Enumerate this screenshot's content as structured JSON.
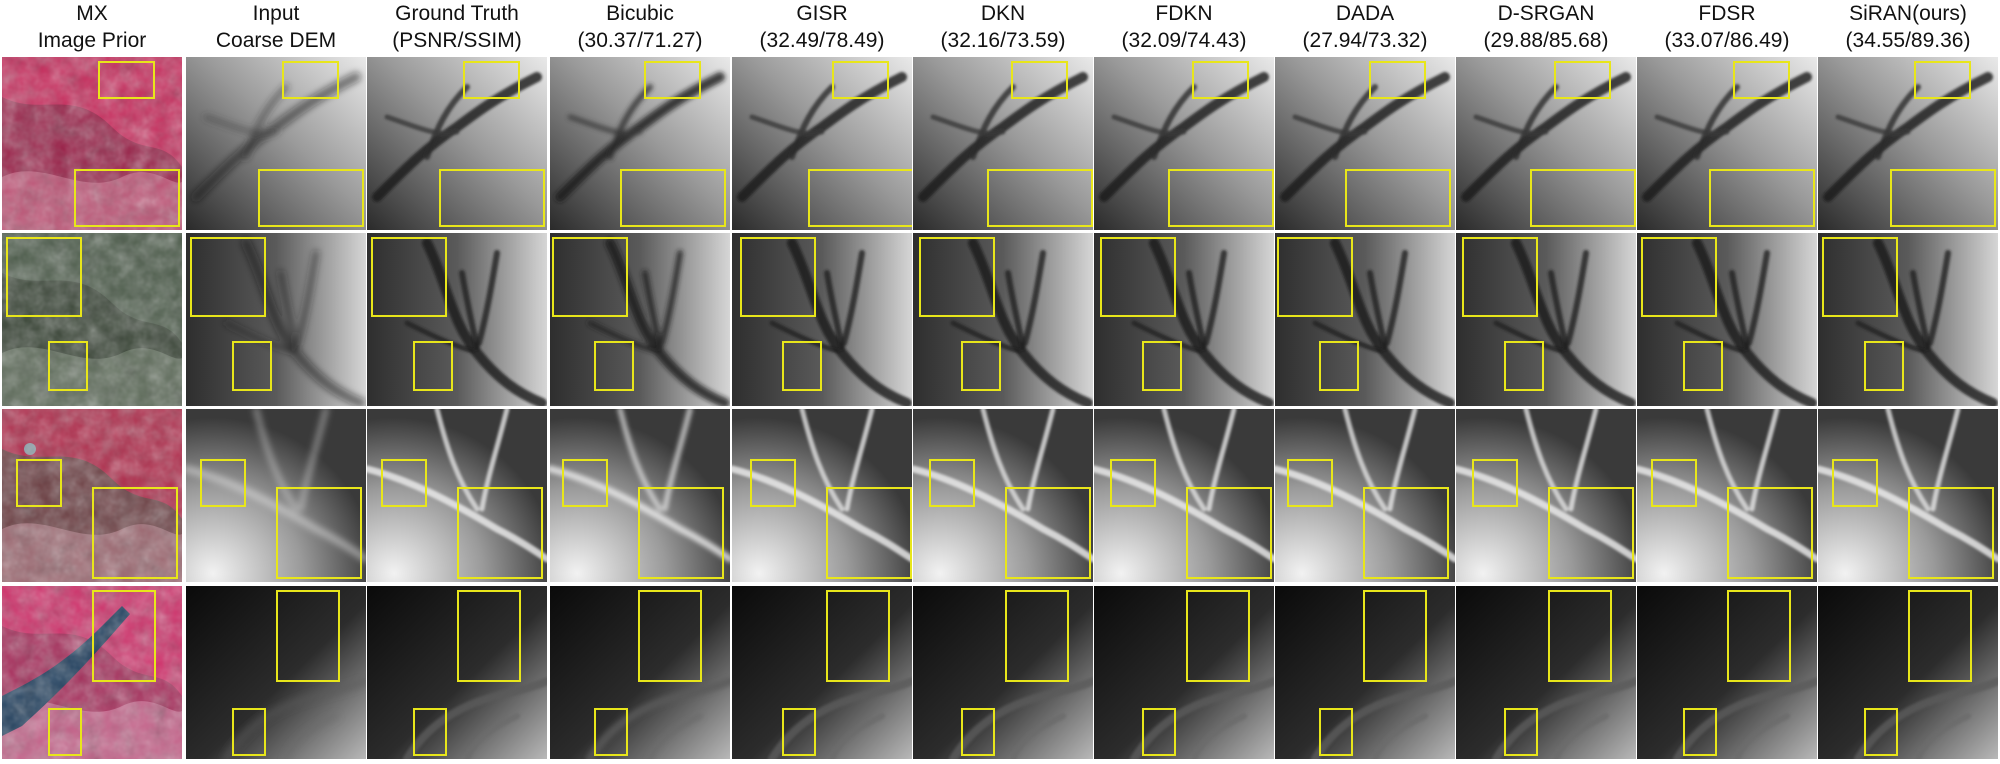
{
  "columns": [
    {
      "line1": "MX",
      "line2": "Image Prior"
    },
    {
      "line1": "Input",
      "line2": "Coarse DEM"
    },
    {
      "line1": "Ground Truth",
      "line2": "(PSNR/SSIM)"
    },
    {
      "line1": "Bicubic",
      "line2": "(30.37/71.27)"
    },
    {
      "line1": "GISR",
      "line2": "(32.49/78.49)"
    },
    {
      "line1": "DKN",
      "line2": "(32.16/73.59)"
    },
    {
      "line1": "FDKN",
      "line2": "(32.09/74.43)"
    },
    {
      "line1": "DADA",
      "line2": "(27.94/73.32)"
    },
    {
      "line1": "D-SRGAN",
      "line2": "(29.88/85.68)"
    },
    {
      "line1": "FDSR",
      "line2": "(33.07/86.49)"
    },
    {
      "line1": "SiRAN(ours)",
      "line2": "(34.55/89.36)"
    }
  ],
  "colors": {
    "zoom_box": "#e8e61a",
    "image_prior_false_color": "#c8285a",
    "image_prior_vegetation": "#4a5a48",
    "dem_dark": "#0c0c0c",
    "dem_light": "#efefef"
  },
  "rows": [
    {
      "prior_style": "false-color-red",
      "dem_style": "valley-light-top"
    },
    {
      "prior_style": "natural-green",
      "dem_style": "dark-ridge-network"
    },
    {
      "prior_style": "false-color-mixed",
      "dem_style": "bright-bottom-left"
    },
    {
      "prior_style": "false-color-river",
      "dem_style": "dark-top-light-bottom-right"
    }
  ]
}
